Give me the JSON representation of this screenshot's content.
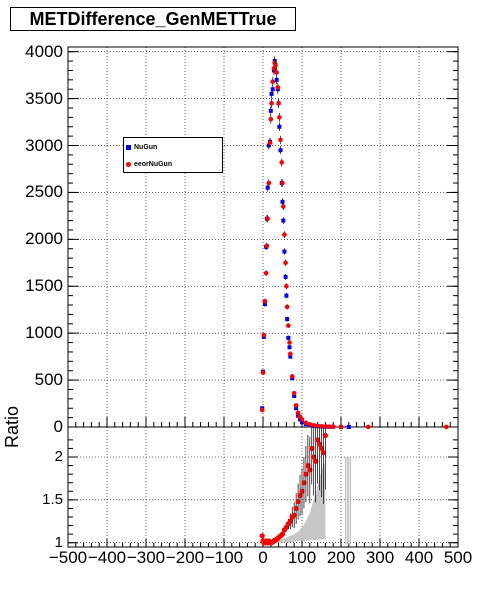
{
  "title": "METDifference_GenMETTrue",
  "legend": [
    {
      "label": "NuGun",
      "color": "#0000ff",
      "marker": "square"
    },
    {
      "label": "eeorNuGun",
      "color": "#ff0000",
      "marker": "circle"
    }
  ],
  "ratio_ylabel": "Ratio",
  "chart_data": [
    {
      "type": "scatter",
      "panel": "main",
      "title": "METDifference_GenMETTrue",
      "xlim": [
        -500,
        500
      ],
      "ylim": [
        0,
        4050
      ],
      "yticks": [
        "0",
        "500",
        "1000",
        "1500",
        "2000",
        "2500",
        "3000",
        "3500",
        "4000"
      ],
      "grid": true,
      "legend_position": "upper-left",
      "series": [
        {
          "name": "NuGun",
          "color": "#0000ff",
          "marker": "square",
          "x": [
            -2,
            0,
            2,
            5,
            8,
            10,
            12,
            15,
            18,
            20,
            22,
            25,
            28,
            30,
            32,
            35,
            38,
            40,
            42,
            45,
            48,
            50,
            52,
            55,
            58,
            60,
            62,
            65,
            68,
            70,
            75,
            80,
            85,
            90,
            95,
            100,
            110,
            120,
            130,
            140,
            150,
            160,
            170,
            180,
            200,
            220
          ],
          "y": [
            200,
            590,
            960,
            1310,
            1920,
            2220,
            2550,
            3000,
            3040,
            3370,
            3550,
            3600,
            3800,
            3900,
            3860,
            3700,
            3600,
            3450,
            3200,
            2950,
            2600,
            2400,
            2200,
            1870,
            1600,
            1400,
            1150,
            950,
            850,
            750,
            520,
            330,
            200,
            120,
            80,
            50,
            30,
            20,
            12,
            8,
            5,
            3,
            2,
            2,
            1,
            1
          ]
        },
        {
          "name": "eeorNuGun",
          "color": "#ff0000",
          "marker": "circle",
          "x": [
            -2,
            0,
            2,
            5,
            8,
            10,
            12,
            15,
            18,
            20,
            22,
            25,
            28,
            30,
            32,
            35,
            38,
            40,
            42,
            45,
            48,
            50,
            52,
            55,
            58,
            60,
            62,
            65,
            68,
            70,
            75,
            80,
            85,
            90,
            95,
            100,
            110,
            120,
            130,
            140,
            150,
            160,
            170,
            180,
            200,
            270,
            470
          ],
          "y": [
            180,
            580,
            980,
            1340,
            1640,
            1930,
            2220,
            2600,
            3030,
            3280,
            3450,
            3680,
            3820,
            3880,
            3850,
            3780,
            3620,
            3450,
            3300,
            3060,
            2820,
            2600,
            2350,
            2050,
            1750,
            1500,
            1280,
            1080,
            900,
            780,
            540,
            360,
            230,
            150,
            110,
            80,
            45,
            28,
            18,
            12,
            8,
            5,
            4,
            3,
            2,
            1,
            1
          ]
        }
      ]
    },
    {
      "type": "scatter",
      "panel": "ratio",
      "ylabel": "Ratio",
      "xlim": [
        -500,
        500
      ],
      "ylim": [
        0.95,
        2.35
      ],
      "yticks": [
        "1",
        "1.5",
        "2"
      ],
      "xticks": [
        "−500",
        "−400",
        "−300",
        "−200",
        "−100",
        "0",
        "100",
        "200",
        "300",
        "400",
        "500"
      ],
      "grid": true,
      "series": [
        {
          "name": "ratio",
          "color": "#ff0000",
          "marker": "circle",
          "x": [
            -2,
            0,
            2,
            5,
            8,
            10,
            12,
            15,
            18,
            20,
            22,
            25,
            28,
            30,
            32,
            35,
            38,
            40,
            45,
            50,
            55,
            60,
            65,
            70,
            75,
            80,
            85,
            90,
            95,
            100,
            105,
            110,
            115,
            120,
            125,
            130,
            135,
            140,
            145,
            150,
            155,
            160
          ],
          "y": [
            1.08,
            1.02,
            1.0,
            1.0,
            1.02,
            1.0,
            1.0,
            1.02,
            1.0,
            1.0,
            1.0,
            1.01,
            1.02,
            1.03,
            1.03,
            1.04,
            1.05,
            1.06,
            1.08,
            1.1,
            1.15,
            1.18,
            1.22,
            1.25,
            1.3,
            1.32,
            1.4,
            1.48,
            1.55,
            1.6,
            1.7,
            1.8,
            1.9,
            1.85,
            2.1,
            2.0,
            1.95,
            2.2,
            2.15,
            2.1,
            2.05,
            2.25
          ]
        }
      ]
    }
  ]
}
